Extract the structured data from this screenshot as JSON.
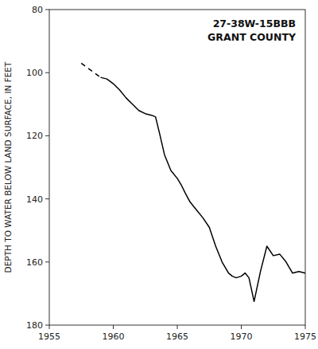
{
  "chart_data": {
    "type": "line",
    "annotations": [
      "27-38W-15BBB",
      "GRANT COUNTY"
    ],
    "ylabel": "DEPTH TO WATER BELOW LAND SURFACE, IN FEET",
    "xlim": [
      1955,
      1975
    ],
    "ylim": [
      180,
      80
    ],
    "xticks": [
      1955,
      1960,
      1965,
      1970,
      1975
    ],
    "yticks": [
      80,
      100,
      120,
      140,
      160,
      180
    ],
    "grid": false,
    "series": [
      {
        "color": "#000000",
        "line_style": "dashed",
        "x": [
          1957.5,
          1958.0,
          1958.5,
          1959.0
        ],
        "values": [
          97.0,
          98.5,
          100.0,
          101.5
        ]
      },
      {
        "color": "#000000",
        "line_style": "solid",
        "x": [
          1959.0,
          1959.5,
          1960.0,
          1960.5,
          1961.0,
          1961.5,
          1962.0,
          1962.5,
          1963.0,
          1963.3,
          1963.6,
          1964.0,
          1964.5,
          1965.0,
          1965.3,
          1965.6,
          1966.0,
          1966.5,
          1967.0,
          1967.5,
          1968.0,
          1968.5,
          1969.0,
          1969.3,
          1969.6,
          1970.0,
          1970.3,
          1970.6,
          1971.0,
          1971.5,
          1972.0,
          1972.5,
          1973.0,
          1973.5,
          1974.0,
          1974.5,
          1975.0
        ],
        "values": [
          101.5,
          102.0,
          103.5,
          105.5,
          108.0,
          110.0,
          112.0,
          113.0,
          113.5,
          114.0,
          119.0,
          126.0,
          131.0,
          133.5,
          135.5,
          138.0,
          141.0,
          143.5,
          146.0,
          149.0,
          155.0,
          160.0,
          163.5,
          164.5,
          165.0,
          164.5,
          163.5,
          165.0,
          172.5,
          163.0,
          155.0,
          158.0,
          157.5,
          160.0,
          163.5,
          163.0,
          163.5
        ]
      }
    ]
  }
}
